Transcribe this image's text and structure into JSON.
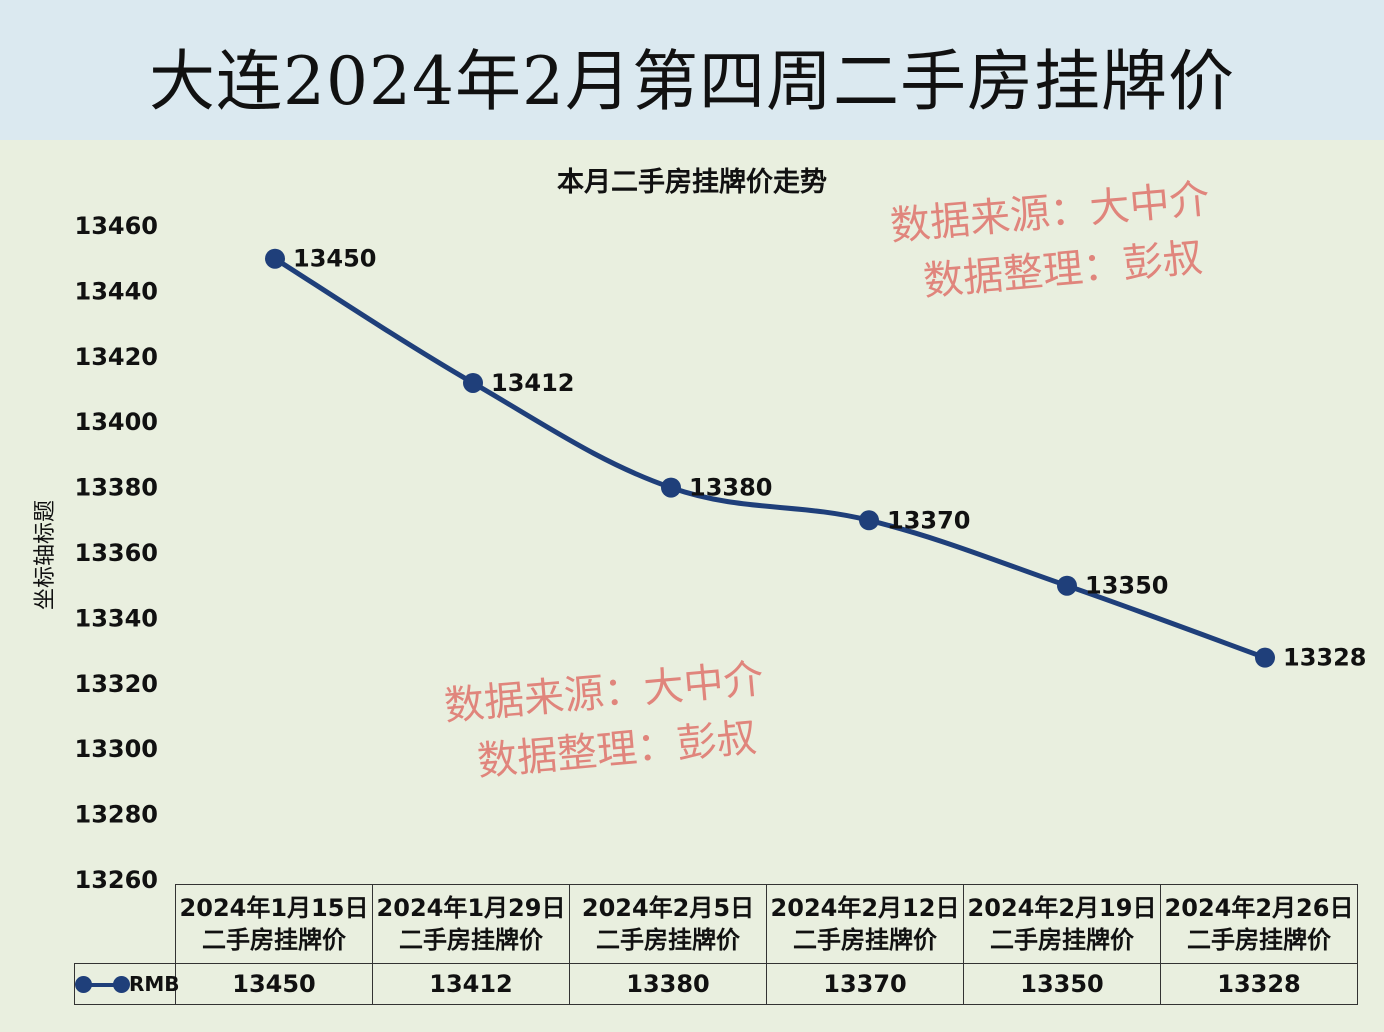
{
  "banner": {
    "title": "大连2024年2月第四周二手房挂牌价"
  },
  "watermarks": [
    {
      "line1": "数据来源：大中介",
      "line2": "数据整理：彭叔"
    },
    {
      "line1": "数据来源：大中介",
      "line2": "数据整理：彭叔"
    }
  ],
  "colors": {
    "series": "#1f3f7a",
    "banner": "#dbe9f0",
    "panel": "#e9efdf",
    "watermark": "#e07a72"
  },
  "chart_data": {
    "type": "line",
    "title": "本月二手房挂牌价走势",
    "ylabel": "坐标轴标题",
    "xlabel": "",
    "ylim": [
      13260,
      13460
    ],
    "yticks": [
      13460,
      13440,
      13420,
      13400,
      13380,
      13360,
      13340,
      13320,
      13300,
      13280,
      13260
    ],
    "grid": false,
    "categories": [
      {
        "line1": "2024年1月15日",
        "line2": "二手房挂牌价"
      },
      {
        "line1": "2024年1月29日",
        "line2": "二手房挂牌价"
      },
      {
        "line1": "2024年2月5日",
        "line2": "二手房挂牌价"
      },
      {
        "line1": "2024年2月12日",
        "line2": "二手房挂牌价"
      },
      {
        "line1": "2024年2月19日",
        "line2": "二手房挂牌价"
      },
      {
        "line1": "2024年2月26日",
        "line2": "二手房挂牌价"
      }
    ],
    "series": [
      {
        "name": "RMB",
        "values": [
          13450,
          13412,
          13380,
          13370,
          13350,
          13328
        ]
      }
    ],
    "legend": "data-table"
  }
}
